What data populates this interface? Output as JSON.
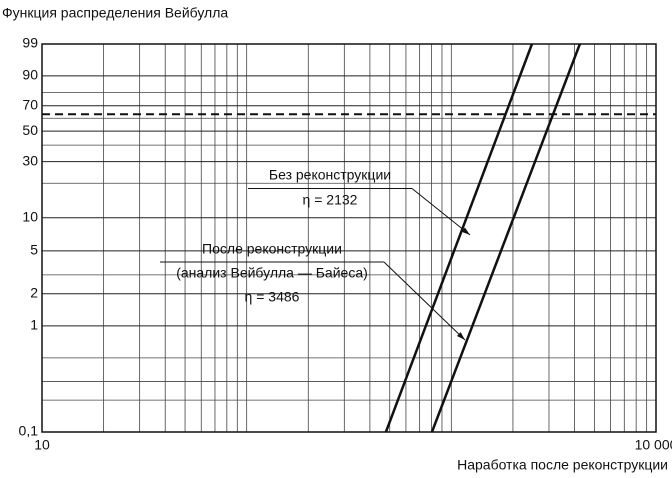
{
  "chart_data": {
    "type": "line",
    "title": "Функция распределения Вейбулла",
    "x_label": "Наработка после реконструкции",
    "x_scale": "log",
    "y_scale": "weibull",
    "grid": true,
    "xlim": [
      10,
      10000
    ],
    "xticks": [
      10,
      {
        "value": 10000,
        "label": "10 000"
      }
    ],
    "xminor_ticks": [
      20,
      30,
      40,
      50,
      60,
      70,
      80,
      90,
      100,
      200,
      300,
      400,
      500,
      600,
      700,
      800,
      900,
      1000,
      2000,
      3000,
      4000,
      5000,
      6000,
      7000,
      8000,
      9000
    ],
    "ylim": [
      0.1,
      99
    ],
    "yticks": [
      {
        "value": 0.1,
        "label": "0,1"
      },
      1,
      2,
      5,
      10,
      30,
      50,
      70,
      90,
      99
    ],
    "yminor_ticks": [
      0.2,
      0.3,
      0.5,
      3,
      20,
      40,
      60,
      80
    ],
    "reference_line": 63.2,
    "series": [
      {
        "name": "Без реконструкции",
        "color": "#111111",
        "x": [
          479,
          2477
        ],
        "values": [
          0.1,
          99
        ]
      },
      {
        "name": "После реконструкции",
        "color": "#111111",
        "x": [
          804,
          4246
        ],
        "values": [
          0.1,
          99
        ]
      }
    ],
    "annotations": [
      {
        "lines": [
          "Без реконструкции",
          "η = 2132"
        ]
      },
      {
        "lines": [
          "После реконструкции",
          "(анализ Вейбулла — Байеса)",
          "η = 3486"
        ]
      }
    ]
  }
}
